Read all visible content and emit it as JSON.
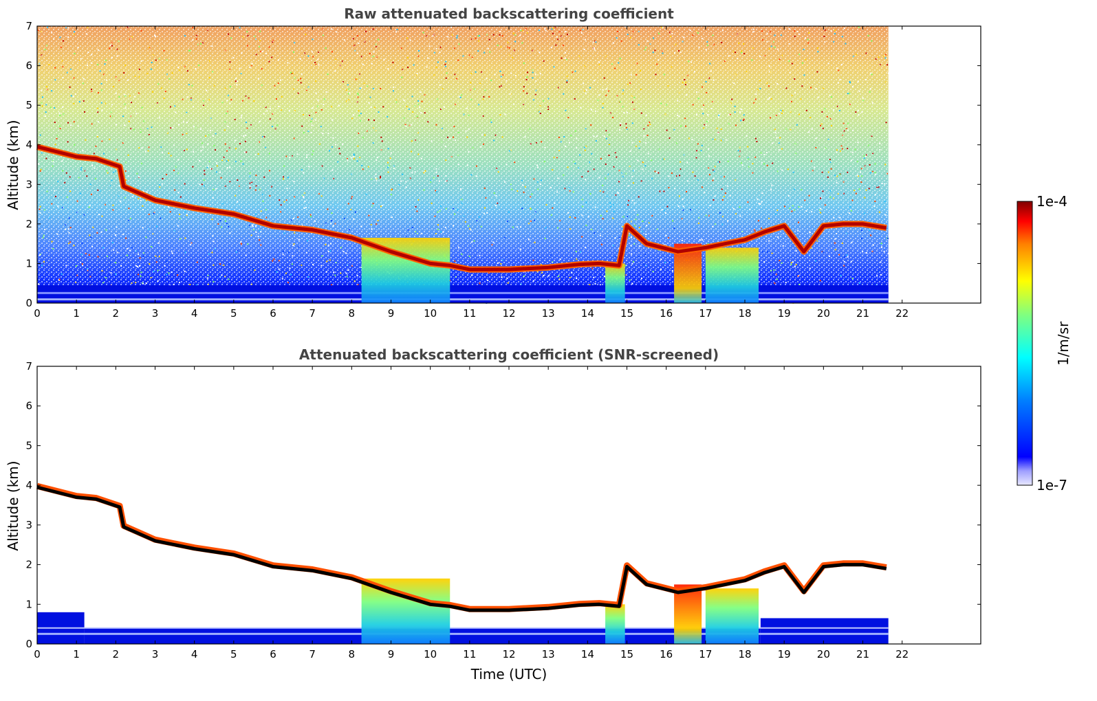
{
  "chart_data": [
    {
      "type": "heatmap",
      "title": "Raw attenuated backscattering coefficient",
      "xlabel": "",
      "ylabel": "Altitude (km)",
      "xlim": [
        0,
        24
      ],
      "ylim": [
        0,
        7
      ],
      "xticks": [
        "0",
        "1",
        "2",
        "3",
        "4",
        "5",
        "6",
        "7",
        "8",
        "9",
        "10",
        "11",
        "12",
        "13",
        "14",
        "15",
        "16",
        "17",
        "18",
        "19",
        "20",
        "21",
        "22"
      ],
      "yticks": [
        "0",
        "1",
        "2",
        "3",
        "4",
        "5",
        "6",
        "7"
      ],
      "data_extent_x": [
        0,
        21.65
      ],
      "cloud_layer": {
        "x": [
          0,
          1.0,
          1.5,
          2.1,
          2.2,
          3,
          4,
          5,
          5.5,
          6,
          7,
          8,
          9,
          9.5,
          10,
          10.5,
          11,
          12,
          13,
          13.8,
          14.3,
          14.8,
          15.0,
          15.5,
          16.3,
          17,
          17.5,
          18,
          18.5,
          19,
          19.5,
          20,
          20.5,
          21,
          21.6
        ],
        "altitude_km": [
          3.95,
          3.7,
          3.65,
          3.45,
          2.95,
          2.6,
          2.4,
          2.25,
          2.1,
          1.95,
          1.85,
          1.65,
          1.3,
          1.15,
          1.0,
          0.95,
          0.85,
          0.85,
          0.9,
          0.98,
          1.0,
          0.95,
          1.95,
          1.5,
          1.3,
          1.4,
          1.5,
          1.6,
          1.8,
          1.95,
          1.3,
          1.95,
          2.0,
          2.0,
          1.9
        ]
      },
      "precipitation_fallstreaks": [
        {
          "x_start": 8.25,
          "x_end": 10.5
        },
        {
          "x_start": 14.45,
          "x_end": 14.95
        },
        {
          "x_start": 16.2,
          "x_end": 16.9
        },
        {
          "x_start": 17.0,
          "x_end": 18.35
        }
      ],
      "boundary_layer_top_km": 0.45
    },
    {
      "type": "heatmap",
      "title": "Attenuated backscattering coefficient (SNR-screened)",
      "xlabel": "Time (UTC)",
      "ylabel": "Altitude (km)",
      "xlim": [
        0,
        24
      ],
      "ylim": [
        0,
        7
      ],
      "xticks": [
        "0",
        "1",
        "2",
        "3",
        "4",
        "5",
        "6",
        "7",
        "8",
        "9",
        "10",
        "11",
        "12",
        "13",
        "14",
        "15",
        "16",
        "17",
        "18",
        "19",
        "20",
        "21",
        "22"
      ],
      "yticks": [
        "0",
        "1",
        "2",
        "3",
        "4",
        "5",
        "6",
        "7"
      ],
      "data_extent_x": [
        0,
        21.65
      ],
      "boundary_layer_top_km": [
        0.8,
        0.4,
        0.65
      ]
    }
  ],
  "colorbar": {
    "label": "1/m/sr",
    "max_label": "1e-4",
    "min_label": "1e-7",
    "scale": "log",
    "colormap": "jet",
    "colors": [
      "#e8e8ff",
      "#b0b0ff",
      "#0000ff",
      "#0080ff",
      "#00ffff",
      "#80ff80",
      "#ffff00",
      "#ff8000",
      "#ff0000",
      "#800000"
    ]
  }
}
